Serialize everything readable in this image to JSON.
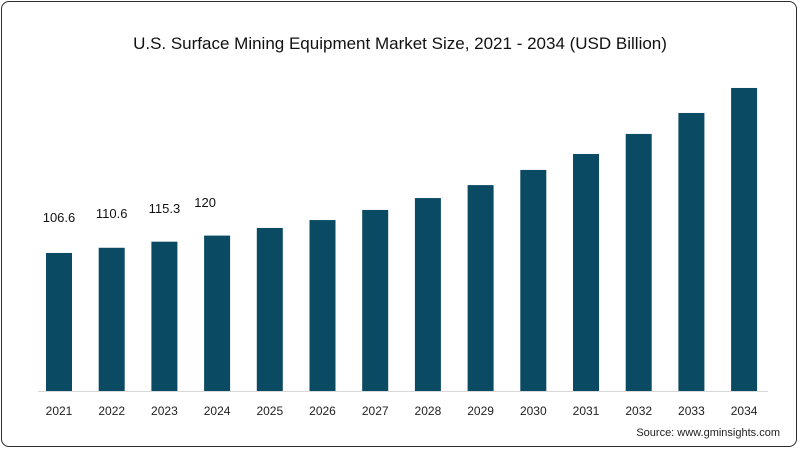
{
  "chart_data": {
    "type": "bar",
    "title": "U.S. Surface Mining Equipment Market  Size, 2021 - 2034 (USD Billion)",
    "xlabel": "",
    "ylabel": "",
    "categories": [
      "2021",
      "2022",
      "2023",
      "2024",
      "2025",
      "2026",
      "2027",
      "2028",
      "2029",
      "2030",
      "2031",
      "2032",
      "2033",
      "2034"
    ],
    "values": [
      106.6,
      110.6,
      115.3,
      120,
      125.9,
      132,
      139.8,
      149,
      159,
      170.7,
      183,
      198.5,
      214.7,
      234
    ],
    "data_labels": [
      "106.6",
      "110.6",
      "115.3",
      "120",
      null,
      null,
      null,
      null,
      null,
      null,
      null,
      null,
      null,
      null
    ],
    "ylim": [
      0,
      240
    ],
    "grid": false,
    "bar_color": "#0b4a63"
  },
  "source": "Source: www.gminsights.com"
}
